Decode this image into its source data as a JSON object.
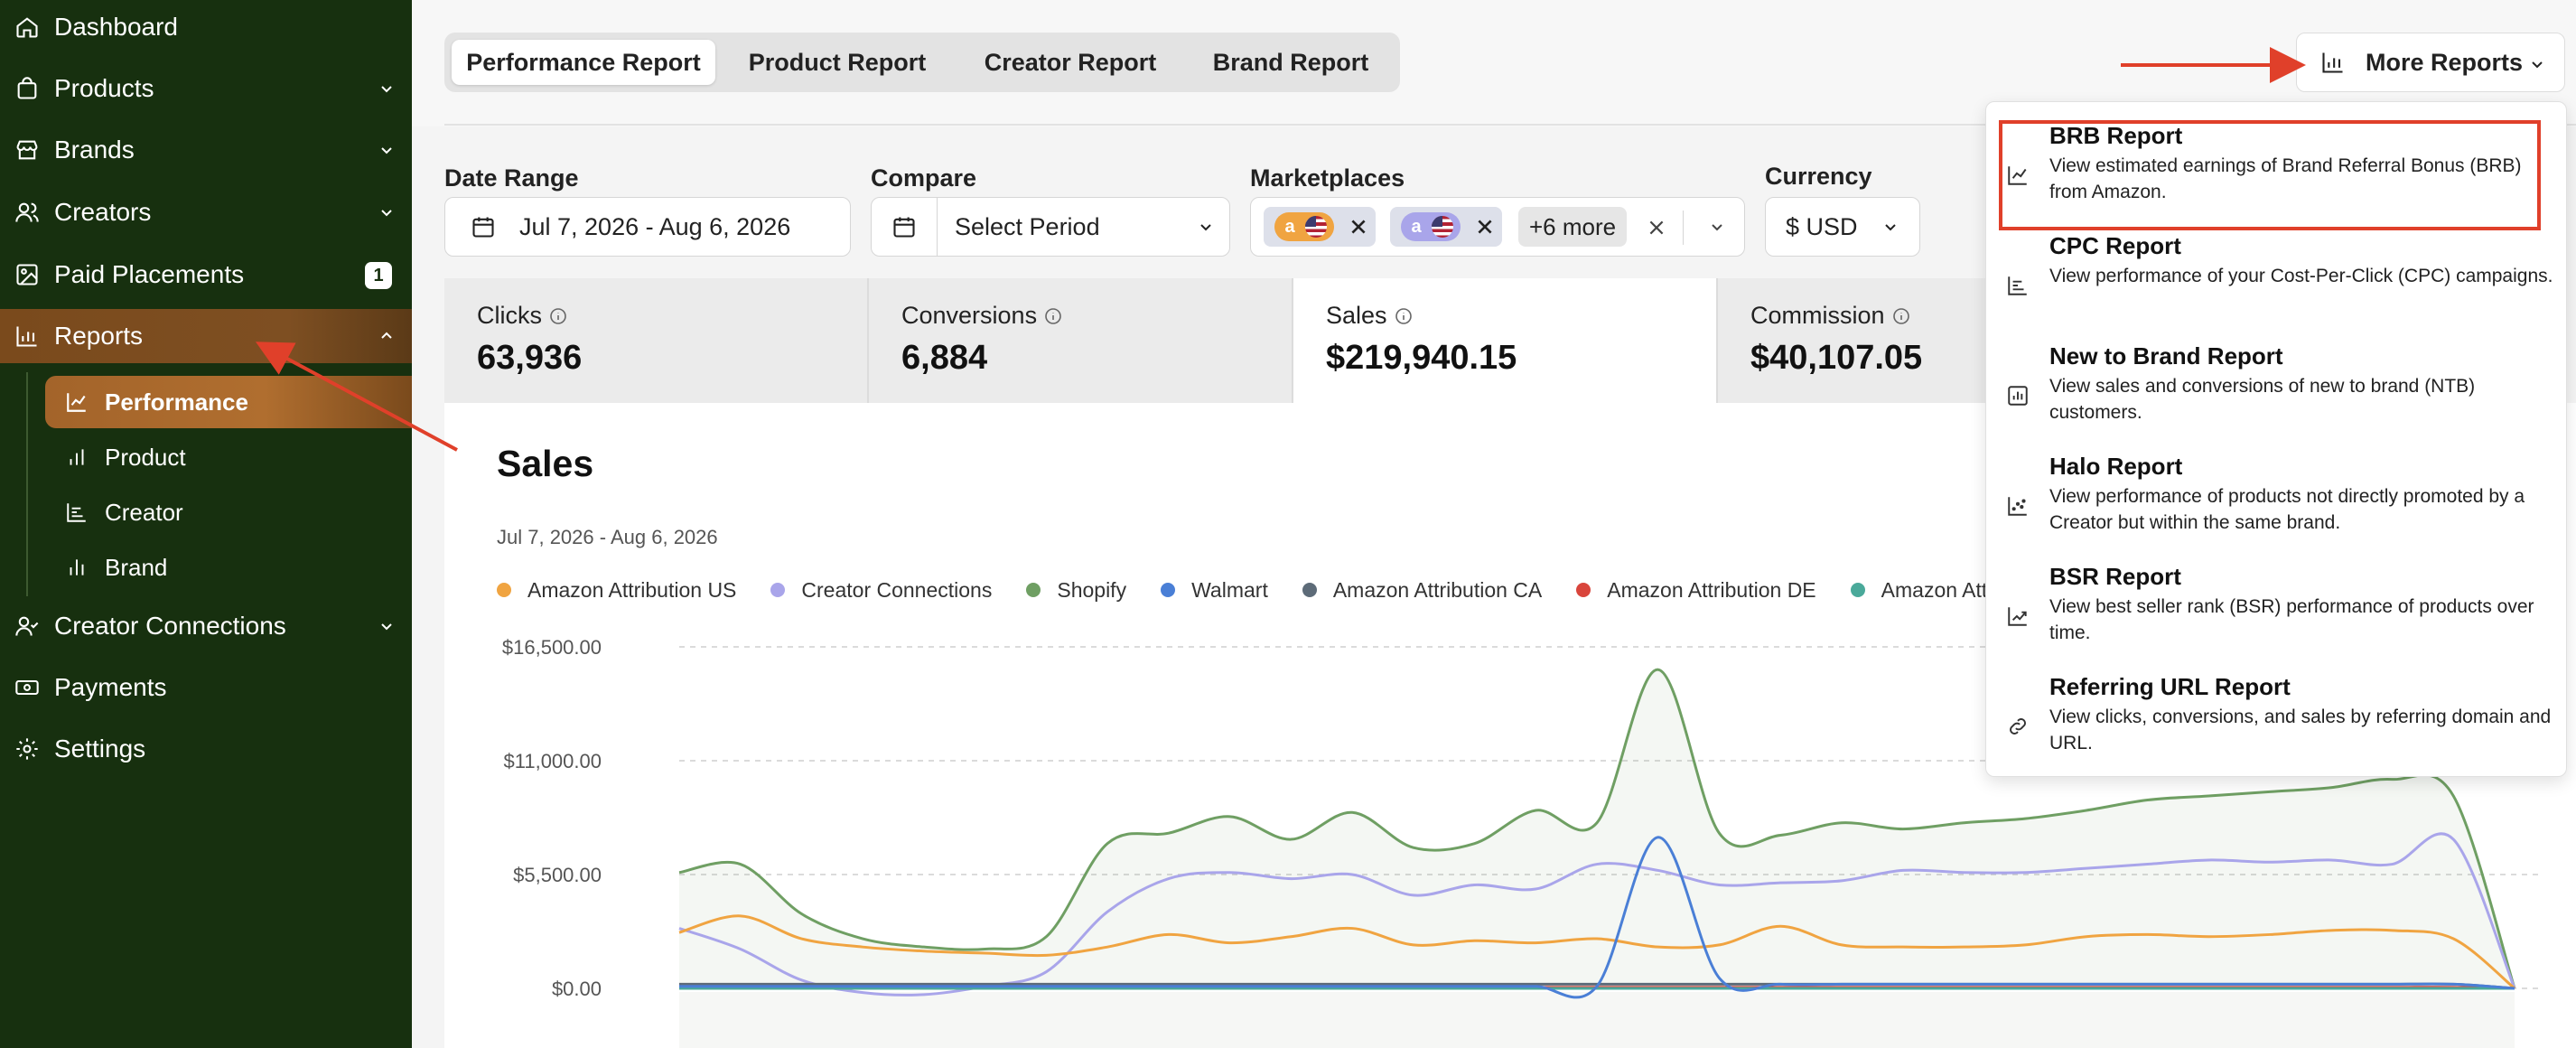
{
  "sidebar": {
    "items": [
      {
        "label": "Dashboard"
      },
      {
        "label": "Products"
      },
      {
        "label": "Brands"
      },
      {
        "label": "Creators"
      },
      {
        "label": "Paid Placements",
        "badge": "1"
      },
      {
        "label": "Reports"
      },
      {
        "label": "Creator Connections"
      },
      {
        "label": "Payments"
      },
      {
        "label": "Settings"
      }
    ],
    "report_items": [
      {
        "label": "Performance"
      },
      {
        "label": "Product"
      },
      {
        "label": "Creator"
      },
      {
        "label": "Brand"
      }
    ]
  },
  "tabs": [
    {
      "label": "Performance Report"
    },
    {
      "label": "Product Report"
    },
    {
      "label": "Creator Report"
    },
    {
      "label": "Brand Report"
    }
  ],
  "more_reports": {
    "label": "More Reports"
  },
  "filters": {
    "date_range": {
      "label": "Date Range",
      "value": "Jul 7, 2026 - Aug 6, 2026"
    },
    "compare": {
      "label": "Compare",
      "value": "Select Period"
    },
    "marketplaces": {
      "label": "Marketplaces",
      "more": "+6 more"
    },
    "currency": {
      "label": "Currency",
      "value": "$ USD"
    }
  },
  "metrics": [
    {
      "label": "Clicks",
      "value": "63,936"
    },
    {
      "label": "Conversions",
      "value": "6,884"
    },
    {
      "label": "Sales",
      "value": "$219,940.15"
    },
    {
      "label": "Commission",
      "value": "$40,107.05"
    }
  ],
  "chart_data": {
    "type": "area",
    "title": "Sales",
    "subtitle": "Jul 7, 2026 - Aug 6, 2026",
    "yticks": [
      "$16,500.00",
      "$11,000.00",
      "$5,500.00",
      "$0.00"
    ],
    "ylim": [
      0,
      16500
    ],
    "grid": true,
    "legend_position": "top-left",
    "series": [
      {
        "name": "Amazon Attribution US",
        "color": "#f0a441",
        "values": [
          2700,
          3500,
          2400,
          2000,
          1800,
          1700,
          1600,
          2000,
          2600,
          2200,
          2500,
          2900,
          2100,
          2300,
          2200,
          2400,
          2000,
          2100,
          3000,
          2100,
          2000,
          2000,
          2100,
          2500,
          2600,
          2500,
          2600,
          2800,
          2800,
          2400,
          0
        ]
      },
      {
        "name": "Creator Connections",
        "color": "#a9a5ea",
        "values": [
          2900,
          1900,
          400,
          -200,
          -300,
          100,
          800,
          3700,
          5300,
          5600,
          5300,
          5500,
          4500,
          5000,
          4800,
          6000,
          5700,
          5000,
          5100,
          5200,
          5700,
          5600,
          5600,
          5800,
          6000,
          6200,
          6100,
          6200,
          6000,
          7200,
          0
        ]
      },
      {
        "name": "Shopify",
        "color": "#6f9f63",
        "values": [
          5600,
          6000,
          3600,
          2400,
          2000,
          1900,
          2500,
          7000,
          7500,
          8300,
          7200,
          8500,
          6800,
          7000,
          8600,
          8000,
          15400,
          7500,
          7400,
          8000,
          7700,
          8000,
          8200,
          8600,
          9100,
          9300,
          9500,
          9700,
          10100,
          9300,
          0
        ]
      },
      {
        "name": "Walmart",
        "color": "#4a7fd6",
        "values": [
          100,
          100,
          100,
          100,
          100,
          100,
          100,
          100,
          100,
          100,
          100,
          100,
          100,
          100,
          100,
          100,
          7300,
          500,
          200,
          200,
          200,
          200,
          200,
          200,
          200,
          200,
          200,
          200,
          200,
          200,
          0
        ]
      },
      {
        "name": "Amazon Attribution CA",
        "color": "#5d6b78",
        "values": [
          200,
          200,
          200,
          200,
          200,
          200,
          200,
          200,
          200,
          200,
          200,
          200,
          200,
          200,
          200,
          200,
          200,
          200,
          200,
          200,
          200,
          200,
          200,
          200,
          200,
          200,
          200,
          200,
          200,
          200,
          0
        ]
      },
      {
        "name": "Amazon Attribution DE",
        "color": "#d9453c",
        "values": [
          50,
          50,
          50,
          50,
          50,
          50,
          50,
          50,
          50,
          50,
          50,
          50,
          50,
          50,
          50,
          50,
          50,
          50,
          50,
          50,
          50,
          50,
          50,
          50,
          50,
          50,
          50,
          50,
          50,
          50,
          0
        ]
      },
      {
        "name": "Amazon Attrib",
        "color": "#4aa99a",
        "values": [
          0,
          0,
          0,
          0,
          0,
          0,
          0,
          0,
          0,
          0,
          0,
          0,
          0,
          0,
          0,
          0,
          0,
          0,
          0,
          0,
          0,
          0,
          0,
          0,
          0,
          0,
          0,
          0,
          0,
          0,
          0
        ]
      }
    ]
  },
  "dropdown": {
    "items": [
      {
        "title": "BRB Report",
        "desc": "View estimated earnings of Brand Referral Bonus (BRB) from Amazon.",
        "icon": "line-chart-icon"
      },
      {
        "title": "CPC Report",
        "desc": "View performance of your Cost-Per-Click (CPC) campaigns.",
        "icon": "bar-chart-horizontal-icon"
      },
      {
        "title": "New to Brand Report",
        "desc": "View sales and conversions of new to brand (NTB) customers.",
        "icon": "bar-chart-box-icon"
      },
      {
        "title": "Halo Report",
        "desc": "View performance of products not directly promoted by a Creator but within the same brand.",
        "icon": "scatter-chart-icon"
      },
      {
        "title": "BSR Report",
        "desc": "View best seller rank (BSR) performance of products over time.",
        "icon": "chart-trend-icon"
      },
      {
        "title": "Referring URL Report",
        "desc": "View clicks, conversions, and sales by referring domain and URL.",
        "icon": "link-icon"
      }
    ]
  },
  "colors": {
    "sidebar_bg": "#17300f",
    "active_gradient": "#a3642a",
    "annotation_red": "#e0402a"
  }
}
